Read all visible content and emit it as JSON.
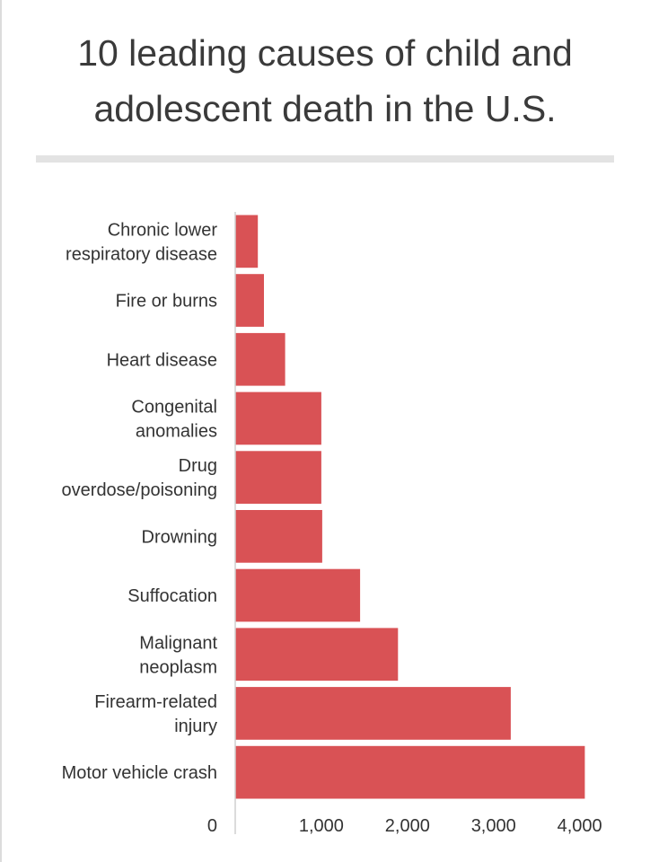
{
  "title_lines": [
    "10 leading causes of child and",
    "adolescent death in the U.S."
  ],
  "chart_data": {
    "type": "bar",
    "orientation": "horizontal",
    "title": "10 leading causes of child and adolescent death in the U.S.",
    "xlabel": "",
    "ylabel": "",
    "xlim": [
      0,
      4400
    ],
    "grid": false,
    "bar_color": "#d95255",
    "categories": [
      [
        "Chronic lower",
        "respiratory disease"
      ],
      [
        "Fire or burns"
      ],
      [
        "Heart disease"
      ],
      [
        "Congenital",
        "anomalies"
      ],
      [
        "Drug",
        "overdose/poisoning"
      ],
      [
        "Drowning"
      ],
      [
        "Suffocation"
      ],
      [
        "Malignant",
        "neoplasm"
      ],
      [
        "Firearm-related",
        "injury"
      ],
      [
        "Motor vehicle crash"
      ]
    ],
    "values": [
      263,
      334,
      580,
      1000,
      1000,
      1010,
      1450,
      1890,
      3200,
      4060
    ],
    "x_ticks": [
      {
        "value": 0,
        "label": "0"
      },
      {
        "value": 1000,
        "label": "1,000"
      },
      {
        "value": 2000,
        "label": "2,000"
      },
      {
        "value": 3000,
        "label": "3,000"
      },
      {
        "value": 4000,
        "label": "4,000"
      }
    ]
  }
}
